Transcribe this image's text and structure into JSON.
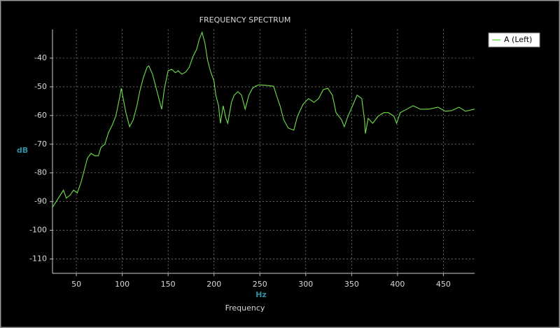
{
  "chart_data": {
    "type": "line",
    "title": "FREQUENCY SPECTRUM",
    "x_label": "Frequency",
    "x_unit": "Hz",
    "y_unit": "dB",
    "x": [
      24,
      28,
      32,
      36,
      39,
      43,
      47,
      51,
      55,
      58,
      62,
      66,
      70,
      74,
      77,
      81,
      85,
      89,
      93,
      97,
      99,
      101,
      104,
      108,
      112,
      116,
      119,
      123,
      127,
      129,
      133,
      137,
      141,
      143,
      146,
      150,
      154,
      158,
      161,
      165,
      169,
      173,
      177,
      181,
      184,
      187,
      190,
      193,
      196,
      200,
      202,
      205,
      207,
      210,
      213,
      215,
      219,
      222,
      226,
      230,
      234,
      238,
      242,
      245,
      249,
      257,
      265,
      268,
      272,
      276,
      281,
      287,
      291,
      297,
      303,
      309,
      314,
      319,
      324,
      329,
      333,
      339,
      342,
      346,
      351,
      356,
      361,
      364,
      365,
      368,
      373,
      379,
      385,
      390,
      396,
      399,
      403,
      410,
      417,
      425,
      434,
      444,
      452,
      459,
      467,
      474,
      484
    ],
    "series": [
      {
        "name": "A (Left)",
        "color": "#6fe04a",
        "values": [
          -92,
          -90,
          -88,
          -86,
          -88.8,
          -87.8,
          -86,
          -87,
          -83.4,
          -79.8,
          -74.9,
          -73.2,
          -74,
          -74,
          -71,
          -70,
          -66,
          -63.4,
          -60.2,
          -54,
          -50.5,
          -54,
          -59,
          -63.9,
          -61.5,
          -56.6,
          -51.7,
          -46.8,
          -43.2,
          -42.7,
          -45.6,
          -50.5,
          -55.4,
          -57.8,
          -50.5,
          -44.4,
          -43.9,
          -45.1,
          -44.4,
          -45.6,
          -44.9,
          -43.2,
          -39.5,
          -37,
          -33.4,
          -31,
          -34.6,
          -40.7,
          -44.4,
          -48,
          -52.9,
          -56.6,
          -62.7,
          -56.6,
          -61,
          -62.7,
          -55.4,
          -52.9,
          -51.7,
          -52.9,
          -57.8,
          -52.9,
          -50.5,
          -49.8,
          -49.3,
          -49.5,
          -49.8,
          -52.9,
          -56.6,
          -61.5,
          -64.4,
          -65.1,
          -60.2,
          -56.1,
          -54.1,
          -55.4,
          -54.1,
          -51,
          -50.5,
          -52.9,
          -59,
          -61.5,
          -63.9,
          -60.2,
          -56.6,
          -52.9,
          -54.1,
          -61.5,
          -66.3,
          -61,
          -62.7,
          -60.2,
          -59,
          -59,
          -60.2,
          -62.7,
          -59,
          -57.8,
          -56.6,
          -57.8,
          -57.8,
          -57.1,
          -58.5,
          -58.3,
          -57.1,
          -58.5,
          -57.8
        ]
      }
    ],
    "xlim": [
      24,
      484
    ],
    "ylim": [
      -115,
      -30
    ],
    "xticks": [
      50,
      100,
      150,
      200,
      250,
      300,
      350,
      400,
      450
    ],
    "yticks": [
      -110,
      -100,
      -90,
      -80,
      -70,
      -60,
      -50,
      -40
    ],
    "grid": true,
    "legend": "outside-top-right"
  }
}
